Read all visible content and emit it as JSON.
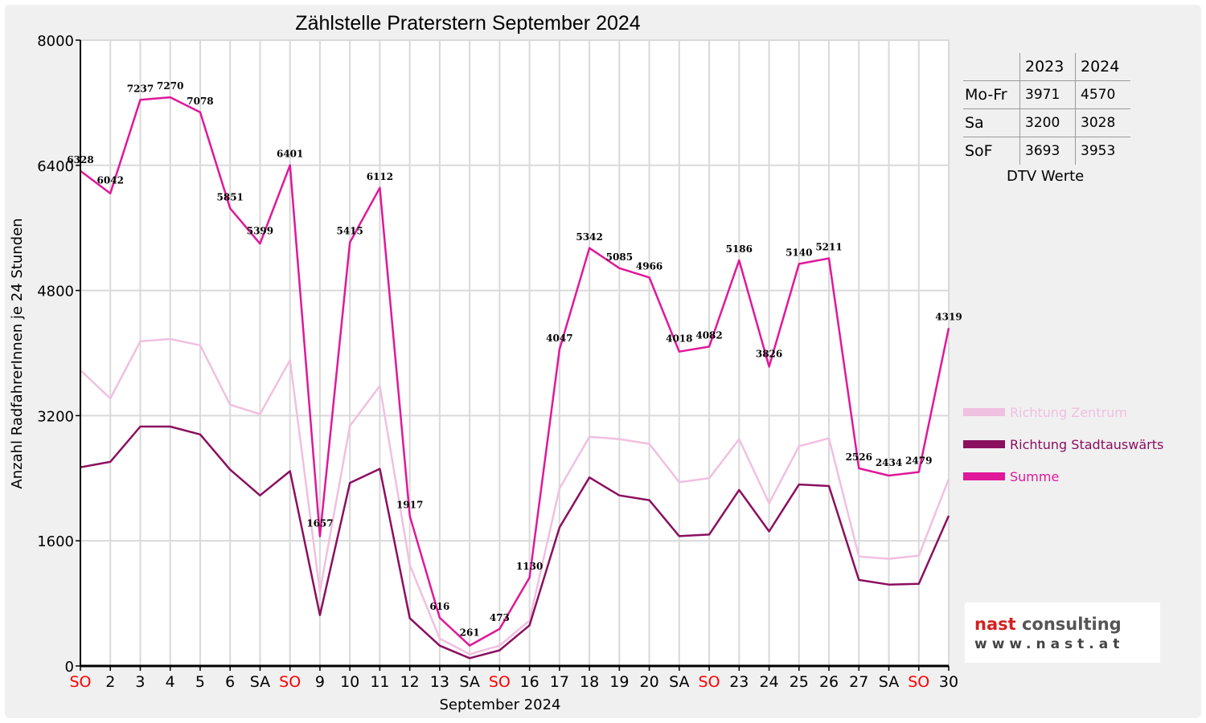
{
  "chart_data": {
    "type": "line",
    "title": "Zählstelle Praterstern September 2024",
    "xlabel": "September 2024",
    "ylabel": "Anzahl RadfahrerInnen je 24 Stunden",
    "ylim": [
      0,
      8000
    ],
    "yticks": [
      0,
      1600,
      3200,
      4800,
      6400,
      8000
    ],
    "grid": true,
    "legend_position": "right",
    "categories": [
      "SO",
      "2",
      "3",
      "4",
      "5",
      "6",
      "SA",
      "SO",
      "9",
      "10",
      "11",
      "12",
      "13",
      "SA",
      "SO",
      "16",
      "17",
      "18",
      "19",
      "20",
      "SA",
      "SO",
      "23",
      "24",
      "25",
      "26",
      "27",
      "SA",
      "SO",
      "30"
    ],
    "weekend_categories": [
      0,
      7,
      14,
      21,
      28
    ],
    "series": [
      {
        "name": "Richtung Zentrum",
        "color": "#f0c0e0",
        "values": [
          3780,
          3420,
          4150,
          4180,
          4100,
          3340,
          3220,
          3910,
          950,
          3070,
          3580,
          1290,
          350,
          150,
          260,
          580,
          2270,
          2930,
          2900,
          2840,
          2350,
          2400,
          2900,
          2080,
          2810,
          2910,
          1400,
          1370,
          1410,
          2390
        ]
      },
      {
        "name": "Richtung Stadtauswärts",
        "color": "#8b0f5f",
        "values": [
          2540,
          2610,
          3060,
          3060,
          2960,
          2510,
          2180,
          2490,
          650,
          2340,
          2520,
          610,
          260,
          100,
          200,
          520,
          1770,
          2410,
          2180,
          2120,
          1660,
          1680,
          2250,
          1720,
          2320,
          2300,
          1100,
          1040,
          1050,
          1920
        ]
      },
      {
        "name": "Summe",
        "color": "#e0189a",
        "values": [
          6328,
          6042,
          7237,
          7270,
          7078,
          5851,
          5399,
          6401,
          1657,
          5415,
          6112,
          1917,
          616,
          261,
          473,
          1130,
          4047,
          5342,
          5085,
          4966,
          4018,
          4082,
          5186,
          3826,
          5140,
          5211,
          2526,
          2434,
          2479,
          4319
        ]
      }
    ]
  },
  "dtv_table": {
    "headers": [
      "2023",
      "2024"
    ],
    "rows": [
      {
        "label": "Mo-Fr",
        "v2023": "3971",
        "v2024": "4570"
      },
      {
        "label": "Sa",
        "v2023": "3200",
        "v2024": "3028"
      },
      {
        "label": "SoF",
        "v2023": "3693",
        "v2024": "3953"
      }
    ],
    "caption": "DTV Werte"
  },
  "logo": {
    "name_part1": "nast",
    "name_part2": " consulting",
    "url": "www.nast.at"
  },
  "colors": {
    "weekend_label": "#ff0000",
    "grid": "#d9d9d9",
    "frame": "#f0f0f0"
  }
}
